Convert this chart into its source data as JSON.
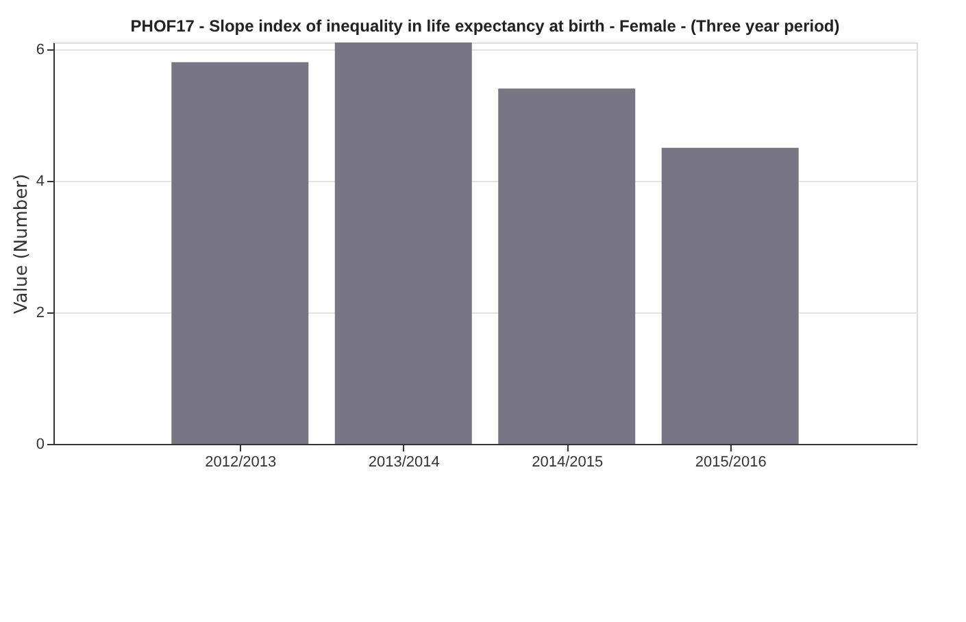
{
  "chart_data": {
    "type": "bar",
    "title": "PHOF17 - Slope index of inequality in life expectancy at birth - Female - (Three year period)",
    "ylabel": "Value (Number)",
    "categories": [
      "2012/2013",
      "2013/2014",
      "2014/2015",
      "2015/2016"
    ],
    "values": [
      5.8,
      6.1,
      5.4,
      4.5
    ],
    "color": "#787584",
    "ylim": [
      0,
      6.1
    ],
    "yticks": [
      0,
      2,
      4,
      6
    ],
    "grid": "y"
  }
}
